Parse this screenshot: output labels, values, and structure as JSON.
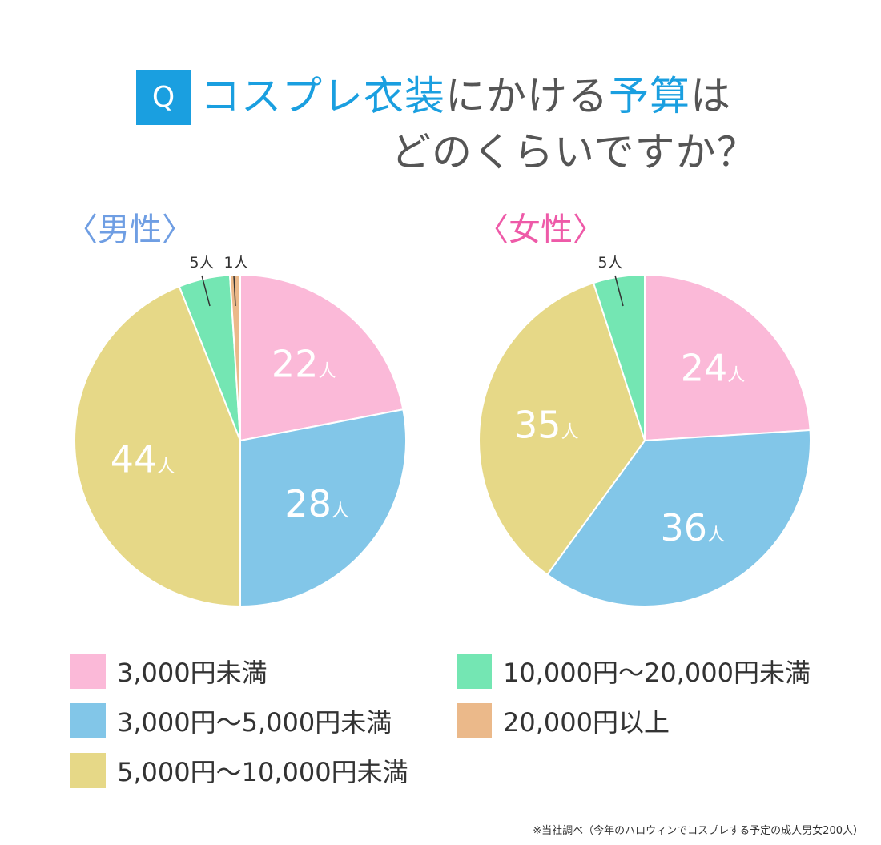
{
  "title": {
    "badge": "Q",
    "segments_line1": [
      {
        "text": "コスプレ衣装",
        "color": "#1a9fe0"
      },
      {
        "text": "にかける",
        "color": "#555555"
      },
      {
        "text": "予算",
        "color": "#1a9fe0"
      },
      {
        "text": "は",
        "color": "#555555"
      }
    ],
    "line2": "どのくらいですか？"
  },
  "colors": {
    "badge": "#1a9fe0",
    "male_label": "#6f9ee3",
    "female_label": "#ee5aa8"
  },
  "male_label": "〈男性〉",
  "female_label": "〈女性〉",
  "chart_data": [
    {
      "type": "pie",
      "title": "〈男性〉",
      "unit": "人",
      "categories": [
        "3,000円未満",
        "3,000円〜5,000円未満",
        "5,000円〜10,000円未満",
        "10,000円〜20,000円未満",
        "20,000円以上"
      ],
      "values": [
        22,
        28,
        44,
        5,
        1
      ],
      "colors": [
        "#fbb9d8",
        "#82c6e8",
        "#e6d887",
        "#74e6b3",
        "#ebb98a"
      ],
      "labels": [
        "22人",
        "28人",
        "44人",
        "5人",
        "1人"
      ],
      "label_placement": [
        "inside",
        "inside",
        "inside",
        "outside",
        "outside"
      ]
    },
    {
      "type": "pie",
      "title": "〈女性〉",
      "unit": "人",
      "categories": [
        "3,000円未満",
        "3,000円〜5,000円未満",
        "5,000円〜10,000円未満",
        "10,000円〜20,000円未満"
      ],
      "values": [
        24,
        36,
        35,
        5
      ],
      "colors": [
        "#fbb9d8",
        "#82c6e8",
        "#e6d887",
        "#74e6b3"
      ],
      "labels": [
        "24人",
        "36人",
        "35人",
        "5人"
      ],
      "label_placement": [
        "inside",
        "inside",
        "inside",
        "outside"
      ]
    }
  ],
  "legend": [
    {
      "label": "3,000円未満",
      "color": "#fbb9d8"
    },
    {
      "label": "3,000円〜5,000円未満",
      "color": "#82c6e8"
    },
    {
      "label": "5,000円〜10,000円未満",
      "color": "#e6d887"
    },
    {
      "label": "10,000円〜20,000円未満",
      "color": "#74e6b3"
    },
    {
      "label": "20,000円以上",
      "color": "#ebb98a"
    }
  ],
  "footnote": "※当社調べ（今年のハロウィンでコスプレする予定の成人男女200人）"
}
